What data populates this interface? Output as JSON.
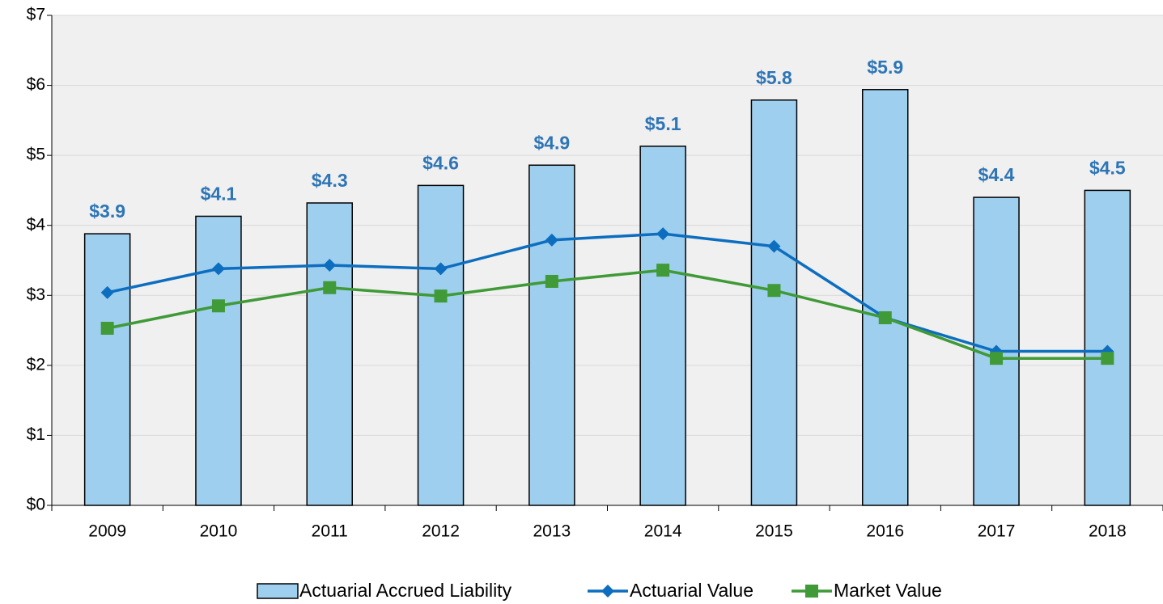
{
  "chart_data": {
    "type": "bar",
    "categories": [
      "2009",
      "2010",
      "2011",
      "2012",
      "2013",
      "2014",
      "2015",
      "2016",
      "2017",
      "2018"
    ],
    "series": [
      {
        "name": "Actuarial Accrued Liability",
        "type": "bar",
        "color": "#9fcfee",
        "values": [
          3.88,
          4.13,
          4.32,
          4.57,
          4.86,
          5.13,
          5.79,
          5.94,
          4.4,
          4.5
        ],
        "value_labels": [
          "$3.9",
          "$4.1",
          "$4.3",
          "$4.6",
          "$4.9",
          "$5.1",
          "$5.8",
          "$5.9",
          "$4.4",
          "$4.5"
        ]
      },
      {
        "name": "Actuarial Value",
        "type": "line",
        "marker": "diamond",
        "color": "#0d6ebf",
        "values": [
          3.04,
          3.38,
          3.43,
          3.38,
          3.79,
          3.88,
          3.7,
          2.68,
          2.2,
          2.2
        ]
      },
      {
        "name": "Market Value",
        "type": "line",
        "marker": "square",
        "color": "#3f9a37",
        "values": [
          2.53,
          2.85,
          3.11,
          2.99,
          3.2,
          3.36,
          3.07,
          2.68,
          2.1,
          2.1
        ]
      }
    ],
    "ylim": [
      0,
      7
    ],
    "yticks": [
      {
        "value": 0,
        "label": "$0"
      },
      {
        "value": 1,
        "label": "$1"
      },
      {
        "value": 2,
        "label": "$2"
      },
      {
        "value": 3,
        "label": "$3"
      },
      {
        "value": 4,
        "label": "$4"
      },
      {
        "value": 5,
        "label": "$5"
      },
      {
        "value": 6,
        "label": "$6"
      },
      {
        "value": 7,
        "label": "$7"
      }
    ],
    "grid": true,
    "legend": "bottom"
  }
}
